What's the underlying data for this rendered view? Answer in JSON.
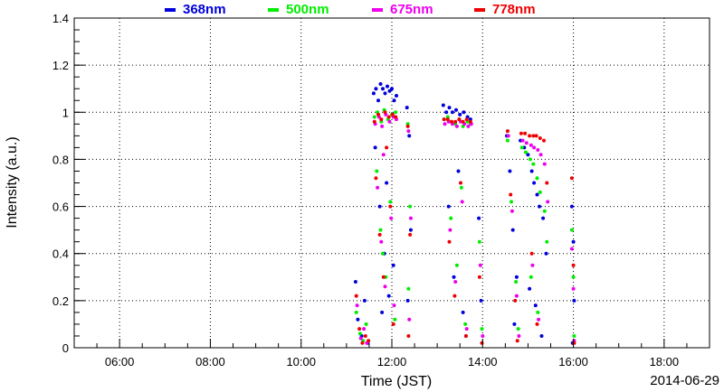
{
  "chart_data": {
    "type": "scatter",
    "title": "",
    "xlabel": "Time (JST)",
    "ylabel": "Intensity (a.u.)",
    "date": "2014-06-29",
    "xlim": [
      "05:00",
      "19:00"
    ],
    "ylim": [
      0,
      1.4
    ],
    "x_ticks": [
      "06:00",
      "08:00",
      "10:00",
      "12:00",
      "14:00",
      "16:00",
      "18:00"
    ],
    "y_ticks": [
      "0",
      "0.2",
      "0.4",
      "0.6",
      "0.8",
      "1",
      "1.2",
      "1.4"
    ],
    "y_tick_values": [
      0,
      0.2,
      0.4,
      0.6,
      0.8,
      1.0,
      1.2,
      1.4
    ],
    "grid": true,
    "legend_position": "top",
    "series": [
      {
        "name": "368nm",
        "color": "#0000dd",
        "points": [
          [
            "11:12",
            0.28
          ],
          [
            "11:15",
            0.12
          ],
          [
            "11:20",
            0.05
          ],
          [
            "11:24",
            0.2
          ],
          [
            "11:28",
            0.02
          ],
          [
            "11:36",
            1.08
          ],
          [
            "11:39",
            1.1
          ],
          [
            "11:42",
            1.05
          ],
          [
            "11:45",
            1.12
          ],
          [
            "11:48",
            1.1
          ],
          [
            "11:51",
            1.08
          ],
          [
            "11:54",
            1.11
          ],
          [
            "11:57",
            1.09
          ],
          [
            "12:00",
            1.1
          ],
          [
            "12:03",
            1.05
          ],
          [
            "12:06",
            1.07
          ],
          [
            "11:38",
            0.85
          ],
          [
            "11:44",
            0.6
          ],
          [
            "11:50",
            0.4
          ],
          [
            "11:56",
            0.22
          ],
          [
            "12:02",
            0.35
          ],
          [
            "11:47",
            0.15
          ],
          [
            "11:53",
            0.7
          ],
          [
            "12:20",
            1.02
          ],
          [
            "12:23",
            0.9
          ],
          [
            "12:25",
            0.5
          ],
          [
            "12:21",
            0.2
          ],
          [
            "13:08",
            1.03
          ],
          [
            "13:12",
            1.0
          ],
          [
            "13:16",
            1.02
          ],
          [
            "13:20",
            1.0
          ],
          [
            "13:25",
            1.01
          ],
          [
            "13:30",
            0.99
          ],
          [
            "13:35",
            1.0
          ],
          [
            "13:40",
            0.98
          ],
          [
            "13:44",
            0.97
          ],
          [
            "13:15",
            0.6
          ],
          [
            "13:22",
            0.3
          ],
          [
            "13:28",
            0.75
          ],
          [
            "13:34",
            0.15
          ],
          [
            "13:38",
            0.05
          ],
          [
            "13:55",
            0.55
          ],
          [
            "13:58",
            0.2
          ],
          [
            "14:32",
            0.9
          ],
          [
            "14:36",
            0.75
          ],
          [
            "14:40",
            0.5
          ],
          [
            "14:45",
            0.3
          ],
          [
            "14:50",
            0.88
          ],
          [
            "14:55",
            0.85
          ],
          [
            "15:00",
            0.82
          ],
          [
            "15:05",
            0.75
          ],
          [
            "15:08",
            0.7
          ],
          [
            "15:12",
            0.65
          ],
          [
            "15:15",
            0.6
          ],
          [
            "15:20",
            0.55
          ],
          [
            "15:24",
            0.4
          ],
          [
            "15:02",
            0.25
          ],
          [
            "15:10",
            0.18
          ],
          [
            "15:18",
            0.05
          ],
          [
            "14:42",
            0.1
          ],
          [
            "15:58",
            0.6
          ],
          [
            "16:00",
            0.45
          ],
          [
            "16:01",
            0.2
          ],
          [
            "15:59",
            0.02
          ]
        ]
      },
      {
        "name": "500nm",
        "color": "#00ee00",
        "points": [
          [
            "11:13",
            0.15
          ],
          [
            "11:18",
            0.06
          ],
          [
            "11:22",
            0.03
          ],
          [
            "11:26",
            0.1
          ],
          [
            "11:37",
            0.98
          ],
          [
            "11:41",
            1.0
          ],
          [
            "11:46",
            0.96
          ],
          [
            "11:50",
            1.01
          ],
          [
            "11:55",
            0.97
          ],
          [
            "12:00",
            0.99
          ],
          [
            "12:05",
            1.0
          ],
          [
            "11:40",
            0.75
          ],
          [
            "11:45",
            0.5
          ],
          [
            "11:52",
            0.3
          ],
          [
            "11:58",
            0.62
          ],
          [
            "12:04",
            0.12
          ],
          [
            "11:48",
            0.4
          ],
          [
            "12:21",
            0.95
          ],
          [
            "12:24",
            0.6
          ],
          [
            "12:22",
            0.25
          ],
          [
            "13:09",
            0.97
          ],
          [
            "13:14",
            0.98
          ],
          [
            "13:19",
            0.96
          ],
          [
            "13:24",
            0.95
          ],
          [
            "13:29",
            0.97
          ],
          [
            "13:34",
            0.94
          ],
          [
            "13:40",
            0.96
          ],
          [
            "13:44",
            0.95
          ],
          [
            "13:18",
            0.55
          ],
          [
            "13:26",
            0.35
          ],
          [
            "13:32",
            0.68
          ],
          [
            "13:37",
            0.1
          ],
          [
            "13:56",
            0.45
          ],
          [
            "13:59",
            0.08
          ],
          [
            "14:33",
            0.88
          ],
          [
            "14:38",
            0.62
          ],
          [
            "14:44",
            0.28
          ],
          [
            "14:52",
            0.85
          ],
          [
            "14:57",
            0.83
          ],
          [
            "15:03",
            0.8
          ],
          [
            "15:07",
            0.78
          ],
          [
            "15:12",
            0.72
          ],
          [
            "15:16",
            0.66
          ],
          [
            "15:22",
            0.58
          ],
          [
            "15:25",
            0.45
          ],
          [
            "15:04",
            0.3
          ],
          [
            "15:13",
            0.15
          ],
          [
            "14:47",
            0.08
          ],
          [
            "15:58",
            0.5
          ],
          [
            "16:00",
            0.3
          ],
          [
            "16:01",
            0.05
          ]
        ]
      },
      {
        "name": "675nm",
        "color": "#ee00ee",
        "points": [
          [
            "11:14",
            0.18
          ],
          [
            "11:19",
            0.04
          ],
          [
            "11:23",
            0.08
          ],
          [
            "11:27",
            0.02
          ],
          [
            "11:38",
            0.95
          ],
          [
            "11:43",
            0.98
          ],
          [
            "11:47",
            0.94
          ],
          [
            "11:52",
            0.99
          ],
          [
            "11:57",
            0.96
          ],
          [
            "12:02",
            0.98
          ],
          [
            "12:06",
            0.97
          ],
          [
            "11:41",
            0.68
          ],
          [
            "11:46",
            0.45
          ],
          [
            "11:51",
            0.26
          ],
          [
            "11:59",
            0.55
          ],
          [
            "12:03",
            0.18
          ],
          [
            "11:49",
            0.82
          ],
          [
            "12:22",
            0.92
          ],
          [
            "12:25",
            0.55
          ],
          [
            "12:23",
            0.12
          ],
          [
            "13:10",
            0.95
          ],
          [
            "13:15",
            0.96
          ],
          [
            "13:20",
            0.95
          ],
          [
            "13:26",
            0.94
          ],
          [
            "13:31",
            0.96
          ],
          [
            "13:36",
            0.95
          ],
          [
            "13:41",
            0.94
          ],
          [
            "13:45",
            0.95
          ],
          [
            "13:17",
            0.5
          ],
          [
            "13:24",
            0.28
          ],
          [
            "13:33",
            0.62
          ],
          [
            "13:39",
            0.08
          ],
          [
            "13:57",
            0.35
          ],
          [
            "14:00",
            0.05
          ],
          [
            "14:34",
            0.9
          ],
          [
            "14:39",
            0.58
          ],
          [
            "14:45",
            0.22
          ],
          [
            "14:53",
            0.88
          ],
          [
            "14:58",
            0.87
          ],
          [
            "15:04",
            0.86
          ],
          [
            "15:08",
            0.85
          ],
          [
            "15:13",
            0.84
          ],
          [
            "15:17",
            0.82
          ],
          [
            "15:22",
            0.78
          ],
          [
            "15:26",
            0.62
          ],
          [
            "15:06",
            0.35
          ],
          [
            "15:14",
            0.12
          ],
          [
            "14:48",
            0.05
          ],
          [
            "15:58",
            0.42
          ],
          [
            "16:00",
            0.25
          ],
          [
            "16:01",
            0.03
          ]
        ]
      },
      {
        "name": "778nm",
        "color": "#ee0000",
        "points": [
          [
            "11:13",
            0.22
          ],
          [
            "11:17",
            0.08
          ],
          [
            "11:21",
            0.02
          ],
          [
            "11:25",
            0.05
          ],
          [
            "11:29",
            0.03
          ],
          [
            "11:37",
            0.96
          ],
          [
            "11:42",
            0.99
          ],
          [
            "11:46",
            0.97
          ],
          [
            "11:51",
            1.0
          ],
          [
            "11:56",
            0.98
          ],
          [
            "12:01",
            0.99
          ],
          [
            "12:05",
            0.98
          ],
          [
            "11:39",
            0.72
          ],
          [
            "11:44",
            0.48
          ],
          [
            "11:49",
            0.3
          ],
          [
            "11:58",
            0.6
          ],
          [
            "12:02",
            0.1
          ],
          [
            "11:53",
            0.85
          ],
          [
            "12:21",
            0.94
          ],
          [
            "12:24",
            0.48
          ],
          [
            "12:22",
            0.05
          ],
          [
            "13:09",
            0.97
          ],
          [
            "13:14",
            0.97
          ],
          [
            "13:19",
            0.96
          ],
          [
            "13:24",
            0.96
          ],
          [
            "13:29",
            0.97
          ],
          [
            "13:34",
            0.96
          ],
          [
            "13:39",
            0.97
          ],
          [
            "13:44",
            0.96
          ],
          [
            "13:16",
            0.45
          ],
          [
            "13:23",
            0.22
          ],
          [
            "13:31",
            0.7
          ],
          [
            "13:38",
            0.05
          ],
          [
            "13:56",
            0.3
          ],
          [
            "13:59",
            0.02
          ],
          [
            "14:33",
            0.92
          ],
          [
            "14:37",
            0.65
          ],
          [
            "14:43",
            0.2
          ],
          [
            "14:51",
            0.91
          ],
          [
            "14:56",
            0.91
          ],
          [
            "15:02",
            0.9
          ],
          [
            "15:07",
            0.9
          ],
          [
            "15:11",
            0.9
          ],
          [
            "15:16",
            0.89
          ],
          [
            "15:21",
            0.88
          ],
          [
            "15:25",
            0.7
          ],
          [
            "15:05",
            0.4
          ],
          [
            "15:12",
            0.1
          ],
          [
            "14:46",
            0.03
          ],
          [
            "15:58",
            0.72
          ],
          [
            "16:00",
            0.35
          ],
          [
            "16:01",
            0.02
          ]
        ]
      }
    ]
  }
}
